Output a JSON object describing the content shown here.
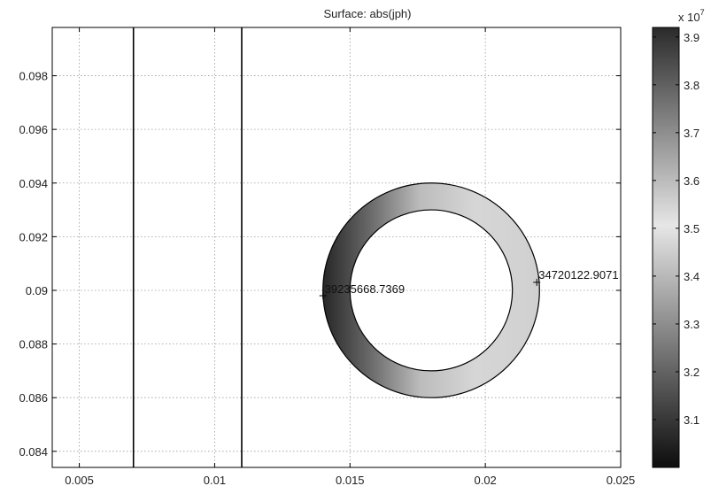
{
  "chart_data": {
    "type": "heatmap",
    "title": "Surface: abs(jph)",
    "xlabel": "",
    "ylabel": "",
    "xlim": [
      0.004,
      0.025
    ],
    "ylim": [
      0.0834,
      0.0998
    ],
    "xticks": [
      0.005,
      0.01,
      0.015,
      0.02,
      0.025
    ],
    "xtick_labels": [
      "0.005",
      "0.01",
      "0.015",
      "0.02",
      "0.025"
    ],
    "yticks": [
      0.084,
      0.086,
      0.088,
      0.09,
      0.092,
      0.094,
      0.096,
      0.098
    ],
    "ytick_labels": [
      "0.084",
      "0.086",
      "0.088",
      "0.09",
      "0.092",
      "0.094",
      "0.096",
      "0.098"
    ],
    "grid": true,
    "vertical_lines_x": [
      0.007,
      0.011
    ],
    "annulus": {
      "center": [
        0.018,
        0.09
      ],
      "outer_radius": 0.004,
      "inner_radius": 0.003,
      "value_min_side": 39235668.7369,
      "value_max_side": 34720122.9071
    },
    "annotations": [
      {
        "text": "39235668.7369",
        "x": 0.014,
        "y": 0.0898
      },
      {
        "text": "34720122.9071",
        "x": 0.0219,
        "y": 0.0903
      }
    ],
    "colorbar": {
      "multiplier_label": "x 10",
      "multiplier_exponent": "7",
      "range": [
        3.0,
        3.92
      ],
      "ticks": [
        3.1,
        3.2,
        3.3,
        3.4,
        3.5,
        3.6,
        3.7,
        3.8,
        3.9
      ],
      "tick_labels": [
        "3.1",
        "3.2",
        "3.3",
        "3.4",
        "3.5",
        "3.6",
        "3.7",
        "3.8",
        "3.9"
      ],
      "colormap": "gray"
    }
  }
}
